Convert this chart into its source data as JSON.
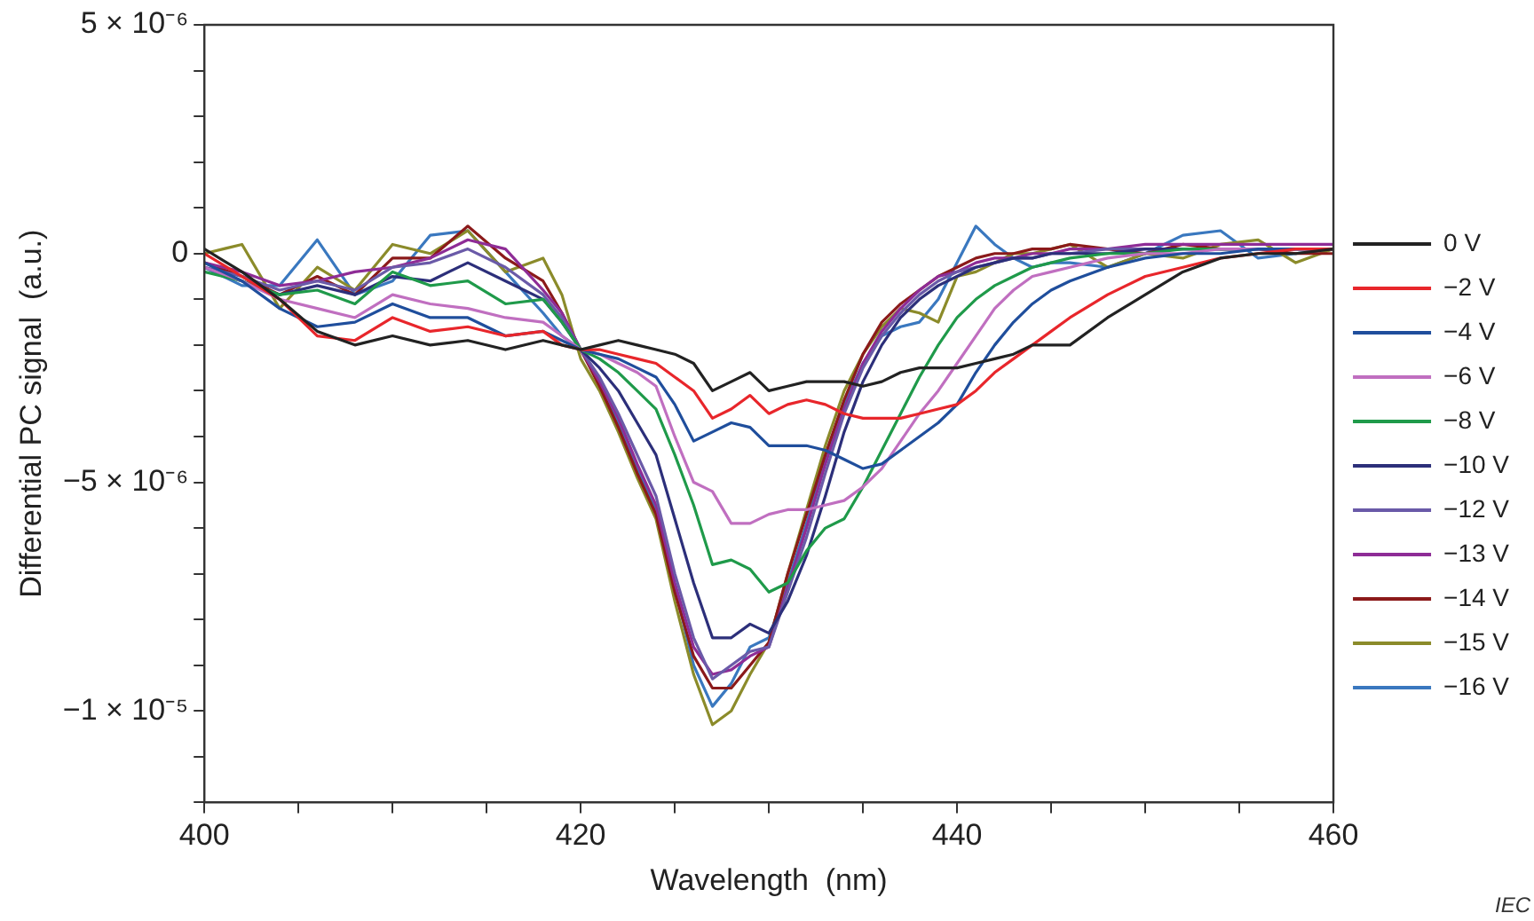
{
  "chart_data": {
    "type": "line",
    "xlabel": "Wavelength  (nm)",
    "ylabel": "Differential PC signal  (a.u.)",
    "x": [
      400,
      402,
      404,
      406,
      408,
      410,
      412,
      414,
      416,
      418,
      419,
      420,
      421,
      422,
      423,
      424,
      425,
      426,
      427,
      428,
      429,
      430,
      431,
      432,
      433,
      434,
      435,
      436,
      437,
      438,
      439,
      440,
      441,
      442,
      443,
      444,
      445,
      446,
      448,
      450,
      452,
      454,
      456,
      458,
      460
    ],
    "series": [
      {
        "name": "0 V",
        "color": "#222222",
        "values": [
          1e-07,
          -4e-07,
          -1e-06,
          -1.7e-06,
          -2e-06,
          -1.8e-06,
          -2e-06,
          -1.9e-06,
          -2.1e-06,
          -1.9e-06,
          -2e-06,
          -2.1e-06,
          -2e-06,
          -1.9e-06,
          -2e-06,
          -2.1e-06,
          -2.2e-06,
          -2.4e-06,
          -3e-06,
          -2.8e-06,
          -2.6e-06,
          -3e-06,
          -2.9e-06,
          -2.8e-06,
          -2.8e-06,
          -2.8e-06,
          -2.9e-06,
          -2.8e-06,
          -2.6e-06,
          -2.5e-06,
          -2.5e-06,
          -2.5e-06,
          -2.4e-06,
          -2.3e-06,
          -2.2e-06,
          -2e-06,
          -2e-06,
          -2e-06,
          -1.4e-06,
          -9e-07,
          -4e-07,
          -1e-07,
          0,
          0,
          1e-07
        ]
      },
      {
        "name": "−2 V",
        "color": "#e8262b",
        "values": [
          0,
          -5e-07,
          -1e-06,
          -1.8e-06,
          -1.9e-06,
          -1.4e-06,
          -1.7e-06,
          -1.6e-06,
          -1.8e-06,
          -1.7e-06,
          -2e-06,
          -2.1e-06,
          -2.1e-06,
          -2.2e-06,
          -2.3e-06,
          -2.4e-06,
          -2.7e-06,
          -3e-06,
          -3.6e-06,
          -3.4e-06,
          -3.1e-06,
          -3.5e-06,
          -3.3e-06,
          -3.2e-06,
          -3.3e-06,
          -3.5e-06,
          -3.6e-06,
          -3.6e-06,
          -3.6e-06,
          -3.5e-06,
          -3.4e-06,
          -3.3e-06,
          -3e-06,
          -2.6e-06,
          -2.3e-06,
          -2e-06,
          -1.7e-06,
          -1.4e-06,
          -9e-07,
          -5e-07,
          -3e-07,
          -1e-07,
          0,
          1e-07,
          1e-07
        ]
      },
      {
        "name": "−4 V",
        "color": "#1f4e9c",
        "values": [
          -2e-07,
          -6e-07,
          -1.2e-06,
          -1.6e-06,
          -1.5e-06,
          -1.1e-06,
          -1.4e-06,
          -1.4e-06,
          -1.8e-06,
          -1.7e-06,
          -1.9e-06,
          -2.1e-06,
          -2.2e-06,
          -2.3e-06,
          -2.5e-06,
          -2.7e-06,
          -3.3e-06,
          -4.1e-06,
          -3.9e-06,
          -3.7e-06,
          -3.8e-06,
          -4.2e-06,
          -4.2e-06,
          -4.2e-06,
          -4.3e-06,
          -4.5e-06,
          -4.7e-06,
          -4.6e-06,
          -4.3e-06,
          -4e-06,
          -3.7e-06,
          -3.3e-06,
          -2.6e-06,
          -2e-06,
          -1.5e-06,
          -1.1e-06,
          -8e-07,
          -6e-07,
          -3e-07,
          -1e-07,
          0,
          0,
          1e-07,
          1e-07,
          1e-07
        ]
      },
      {
        "name": "−6 V",
        "color": "#c06fc0",
        "values": [
          -3e-07,
          -6e-07,
          -1e-06,
          -1.2e-06,
          -1.4e-06,
          -9e-07,
          -1.1e-06,
          -1.2e-06,
          -1.4e-06,
          -1.5e-06,
          -1.8e-06,
          -2.1e-06,
          -2.2e-06,
          -2.4e-06,
          -2.6e-06,
          -2.9e-06,
          -4e-06,
          -5e-06,
          -5.2e-06,
          -5.9e-06,
          -5.9e-06,
          -5.7e-06,
          -5.6e-06,
          -5.6e-06,
          -5.5e-06,
          -5.4e-06,
          -5.1e-06,
          -4.7e-06,
          -4.1e-06,
          -3.5e-06,
          -3e-06,
          -2.4e-06,
          -1.8e-06,
          -1.2e-06,
          -8e-07,
          -5e-07,
          -4e-07,
          -3e-07,
          -1e-07,
          0,
          0,
          1e-07,
          1e-07,
          1e-07,
          1e-07
        ]
      },
      {
        "name": "−8 V",
        "color": "#1f9a4a",
        "values": [
          -4e-07,
          -6e-07,
          -9e-07,
          -8e-07,
          -1.1e-06,
          -4e-07,
          -7e-07,
          -6e-07,
          -1.1e-06,
          -1e-06,
          -1.5e-06,
          -2.1e-06,
          -2.3e-06,
          -2.6e-06,
          -3e-06,
          -3.4e-06,
          -4.4e-06,
          -5.5e-06,
          -6.8e-06,
          -6.7e-06,
          -6.9e-06,
          -7.4e-06,
          -7.2e-06,
          -6.5e-06,
          -6e-06,
          -5.8e-06,
          -5.1e-06,
          -4.3e-06,
          -3.5e-06,
          -2.7e-06,
          -2e-06,
          -1.4e-06,
          -1e-06,
          -7e-07,
          -5e-07,
          -3e-07,
          -2e-07,
          -1e-07,
          0,
          0,
          1e-07,
          1e-07,
          1e-07,
          null,
          null
        ]
      },
      {
        "name": "−10 V",
        "color": "#2c2f7a",
        "values": [
          -3e-07,
          -6e-07,
          -9e-07,
          -7e-07,
          -9e-07,
          -5e-07,
          -6e-07,
          -2e-07,
          -6e-07,
          -1e-06,
          -1.5e-06,
          -2.1e-06,
          -2.5e-06,
          -3e-06,
          -3.7e-06,
          -4.4e-06,
          -5.8e-06,
          -7.2e-06,
          -8.4e-06,
          -8.4e-06,
          -8.1e-06,
          -8.3e-06,
          -7.6e-06,
          -6.6e-06,
          -5.3e-06,
          -3.9e-06,
          -2.8e-06,
          -2e-06,
          -1.4e-06,
          -1e-06,
          -7e-07,
          -5e-07,
          -3e-07,
          -2e-07,
          -1e-07,
          -1e-07,
          0,
          0,
          0,
          1e-07,
          1e-07,
          1e-07,
          1e-07,
          1e-07,
          1e-07
        ]
      },
      {
        "name": "−12 V",
        "color": "#6a5aa8",
        "values": [
          -3e-07,
          -5e-07,
          -8e-07,
          -6e-07,
          -8e-07,
          -3e-07,
          -2e-07,
          1e-07,
          -3e-07,
          -9e-07,
          -1.4e-06,
          -2.1e-06,
          -2.7e-06,
          -3.5e-06,
          -4.4e-06,
          -5.3e-06,
          -7e-06,
          -8.4e-06,
          -9.3e-06,
          -9e-06,
          -8.7e-06,
          -8.6e-06,
          -7.4e-06,
          -6.2e-06,
          -4.8e-06,
          -3.5e-06,
          -2.5e-06,
          -1.8e-06,
          -1.3e-06,
          -9e-07,
          -6e-07,
          -4e-07,
          -3e-07,
          -2e-07,
          -1e-07,
          -1e-07,
          0,
          0,
          1e-07,
          1e-07,
          1e-07,
          1e-07,
          1e-07,
          1e-07,
          1e-07
        ]
      },
      {
        "name": "−13 V",
        "color": "#8e2c96",
        "values": [
          -2e-07,
          -4e-07,
          -7e-07,
          -6e-07,
          -4e-07,
          -3e-07,
          -1e-07,
          3e-07,
          1e-07,
          -8e-07,
          -1.3e-06,
          -2.1e-06,
          -2.8e-06,
          -3.6e-06,
          -4.6e-06,
          -5.5e-06,
          -7.2e-06,
          -8.6e-06,
          -9.2e-06,
          -9.1e-06,
          -8.8e-06,
          -8.6e-06,
          -7.3e-06,
          -6e-06,
          -4.6e-06,
          -3.4e-06,
          -2.4e-06,
          -1.7e-06,
          -1.2e-06,
          -8e-07,
          -5e-07,
          -4e-07,
          -2e-07,
          -1e-07,
          -1e-07,
          0,
          0,
          1e-07,
          1e-07,
          2e-07,
          2e-07,
          2e-07,
          2e-07,
          2e-07,
          2e-07
        ]
      },
      {
        "name": "−14 V",
        "color": "#8b1a1a",
        "values": [
          -2e-07,
          -5e-07,
          -9e-07,
          -5e-07,
          -9e-07,
          -1e-07,
          -1e-07,
          6e-07,
          -1e-07,
          -6e-07,
          -1.3e-06,
          -2.1e-06,
          -2.9e-06,
          -3.8e-06,
          -4.8e-06,
          -5.7e-06,
          -7.4e-06,
          -8.8e-06,
          -9.5e-06,
          -9.5e-06,
          -9e-06,
          -8.5e-06,
          -7e-06,
          -5.7e-06,
          -4.4e-06,
          -3.2e-06,
          -2.2e-06,
          -1.5e-06,
          -1.1e-06,
          -8e-07,
          -5e-07,
          -3e-07,
          -1e-07,
          0,
          0,
          1e-07,
          1e-07,
          2e-07,
          1e-07,
          0,
          2e-07,
          1e-07,
          1e-07,
          0,
          0
        ]
      },
      {
        "name": "−15 V",
        "color": "#8b8b2a",
        "values": [
          0,
          2e-07,
          -1.2e-06,
          -3e-07,
          -8e-07,
          2e-07,
          0,
          5e-07,
          -4e-07,
          -1e-07,
          -9e-07,
          -2.3e-06,
          -3e-06,
          -3.9e-06,
          -4.9e-06,
          -5.8e-06,
          -7.6e-06,
          -9.2e-06,
          -1.03e-05,
          -1e-05,
          -9.2e-06,
          -8.5e-06,
          -7e-06,
          -5.6e-06,
          -4.2e-06,
          -3e-06,
          -2.2e-06,
          -1.6e-06,
          -1.2e-06,
          -1.3e-06,
          -1.5e-06,
          -5e-07,
          -4e-07,
          -2e-07,
          0,
          0,
          1e-07,
          2e-07,
          -3e-07,
          0,
          -1e-07,
          2e-07,
          3e-07,
          -2e-07,
          1e-07
        ]
      },
      {
        "name": "−16 V",
        "color": "#3a78bf",
        "values": [
          -3e-07,
          -7e-07,
          -7e-07,
          3e-07,
          -9e-07,
          -6e-07,
          4e-07,
          5e-07,
          -4e-07,
          -1.3e-06,
          -1.8e-06,
          -2.1e-06,
          -2.8e-06,
          -3.7e-06,
          -4.7e-06,
          -5.6e-06,
          -7.3e-06,
          -9e-06,
          -9.9e-06,
          -9.4e-06,
          -8.6e-06,
          -8.4e-06,
          -7.2e-06,
          -5.9e-06,
          -4.5e-06,
          -3.3e-06,
          -2.4e-06,
          -1.8e-06,
          -1.6e-06,
          -1.5e-06,
          -1e-06,
          -2e-07,
          6e-07,
          2e-07,
          -1e-07,
          -3e-07,
          -2e-07,
          -2e-07,
          -3e-07,
          0,
          4e-07,
          5e-07,
          -1e-07,
          0,
          1e-07
        ]
      }
    ],
    "xlim": [
      400,
      460
    ],
    "xticks": [
      400,
      {
        "value": 405,
        "label": null
      },
      {
        "value": 410,
        "label": null
      },
      {
        "value": 415,
        "label": null
      },
      420,
      {
        "value": 425,
        "label": null
      },
      {
        "value": 430,
        "label": null
      },
      {
        "value": 435,
        "label": null
      },
      440,
      {
        "value": 445,
        "label": null
      },
      {
        "value": 450,
        "label": null
      },
      {
        "value": 455,
        "label": null
      },
      460
    ],
    "ylim": [
      -1.2e-05,
      5e-06
    ],
    "yticks": [
      {
        "value": -1.2e-05,
        "label": null
      },
      {
        "value": -1.1e-05,
        "label": null
      },
      {
        "value": -1e-05,
        "label": "−1 × 10⁻⁵"
      },
      {
        "value": -9e-06,
        "label": null
      },
      {
        "value": -8e-06,
        "label": null
      },
      {
        "value": -7e-06,
        "label": null
      },
      {
        "value": -6e-06,
        "label": null
      },
      {
        "value": -5e-06,
        "label": "−5 × 10⁻⁶"
      },
      {
        "value": -4e-06,
        "label": null
      },
      {
        "value": -3e-06,
        "label": null
      },
      {
        "value": -2e-06,
        "label": null
      },
      {
        "value": -1e-06,
        "label": null
      },
      {
        "value": 0,
        "label": "0"
      },
      {
        "value": 1e-06,
        "label": null
      },
      {
        "value": 2e-06,
        "label": null
      },
      {
        "value": 3e-06,
        "label": null
      },
      {
        "value": 4e-06,
        "label": null
      },
      {
        "value": 5e-06,
        "label": "5 × 10⁻⁶"
      }
    ],
    "grid": false,
    "legend": "right",
    "marker": "none",
    "line_style": "solid",
    "annotations": [
      "IEC"
    ]
  }
}
